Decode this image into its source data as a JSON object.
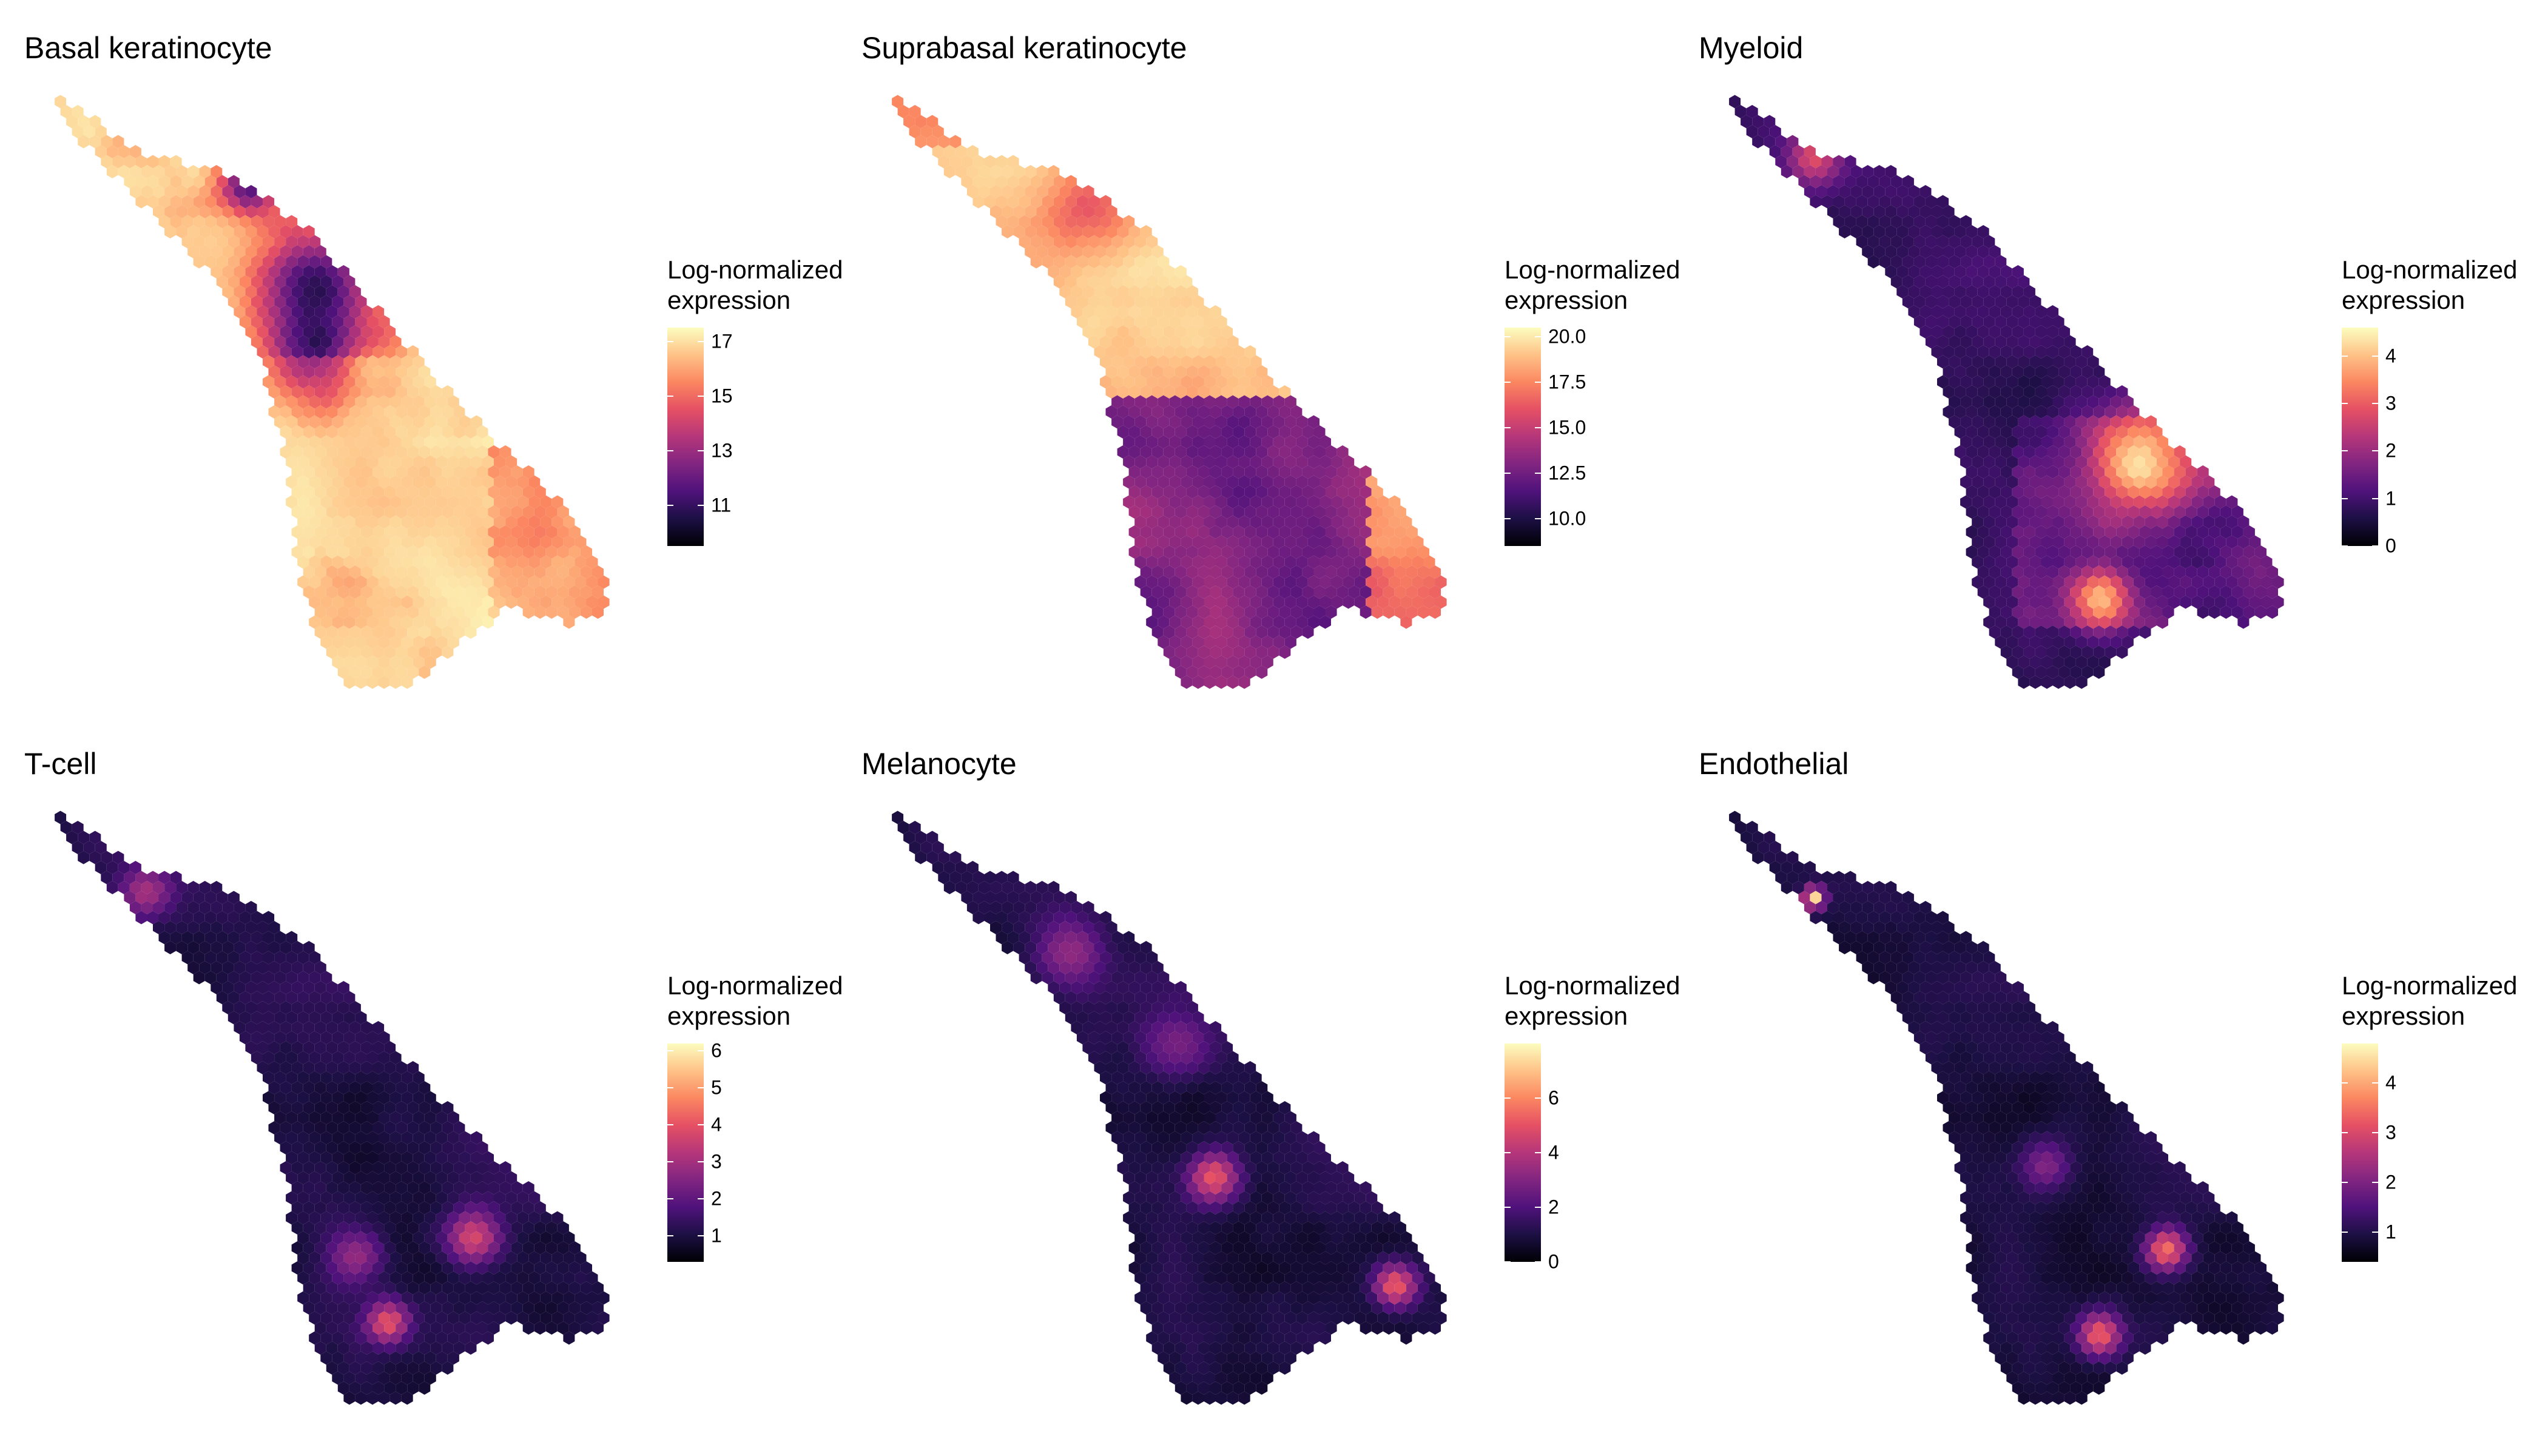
{
  "chart_data": [
    {
      "type": "heatmap",
      "title": "Basal keratinocyte",
      "legend_title": [
        "Log-normalized",
        "expression"
      ],
      "scale": "magma",
      "range": [
        9.5,
        17.5
      ],
      "ticks": [
        "11",
        "13",
        "15",
        "17"
      ],
      "tick_values": [
        11,
        13,
        15,
        17
      ],
      "pattern": "basal"
    },
    {
      "type": "heatmap",
      "title": "Suprabasal keratinocyte",
      "legend_title": [
        "Log-normalized",
        "expression"
      ],
      "scale": "magma",
      "range": [
        8.5,
        20.5
      ],
      "ticks": [
        "10.0",
        "12.5",
        "15.0",
        "17.5",
        "20.0"
      ],
      "tick_values": [
        10,
        12.5,
        15,
        17.5,
        20
      ],
      "pattern": "suprabasal"
    },
    {
      "type": "heatmap",
      "title": "Myeloid",
      "legend_title": [
        "Log-normalized",
        "expression"
      ],
      "scale": "magma",
      "range": [
        0,
        4.6
      ],
      "ticks": [
        "0",
        "1",
        "2",
        "3",
        "4"
      ],
      "tick_values": [
        0,
        1,
        2,
        3,
        4
      ],
      "pattern": "myeloid"
    },
    {
      "type": "heatmap",
      "title": "T-cell",
      "legend_title": [
        "Log-normalized",
        "expression"
      ],
      "scale": "magma",
      "range": [
        0.3,
        6.2
      ],
      "ticks": [
        "1",
        "2",
        "3",
        "4",
        "5",
        "6"
      ],
      "tick_values": [
        1,
        2,
        3,
        4,
        5,
        6
      ],
      "pattern": "tcell"
    },
    {
      "type": "heatmap",
      "title": "Melanocyte",
      "legend_title": [
        "Log-normalized",
        "expression"
      ],
      "scale": "magma",
      "range": [
        0,
        8
      ],
      "ticks": [
        "0",
        "2",
        "4",
        "6"
      ],
      "tick_values": [
        0,
        2,
        4,
        6
      ],
      "pattern": "melanocyte"
    },
    {
      "type": "heatmap",
      "title": "Endothelial",
      "legend_title": [
        "Log-normalized",
        "expression"
      ],
      "scale": "magma",
      "range": [
        0.4,
        4.8
      ],
      "ticks": [
        "1",
        "2",
        "3",
        "4"
      ],
      "tick_values": [
        1,
        2,
        3,
        4
      ],
      "pattern": "endothelial"
    }
  ],
  "colors": {
    "magma": [
      "#000004",
      "#1c1044",
      "#4f127b",
      "#812581",
      "#b5367a",
      "#e55064",
      "#fb8761",
      "#fec287",
      "#fcfdbf"
    ]
  }
}
